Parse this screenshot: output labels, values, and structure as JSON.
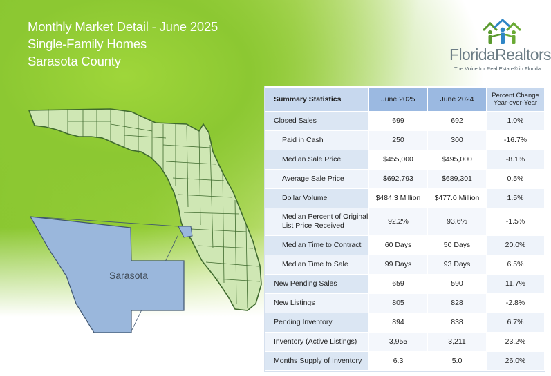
{
  "header": {
    "line1": "Monthly Market Detail - June 2025",
    "line2": "Single-Family Homes",
    "line3": "Sarasota County"
  },
  "logo": {
    "name": "FloridaRealtors",
    "registered": "®",
    "tagline": "The Voice for Real Estate® in Florida"
  },
  "map": {
    "county_label": "Sarasota",
    "state_fill": "#cfe7b4",
    "state_stroke": "#3f6a2e",
    "county_fill": "#9ab7dc",
    "county_stroke": "#3f5570"
  },
  "table": {
    "headers": {
      "label": "Summary Statistics",
      "current": "June 2025",
      "prior": "June 2024",
      "change_line1": "Percent Change",
      "change_line2": "Year-over-Year"
    },
    "rows": [
      {
        "label": "Closed Sales",
        "current": "699",
        "prior": "692",
        "change": "1.0%"
      },
      {
        "label": "Paid in Cash",
        "current": "250",
        "prior": "300",
        "change": "-16.7%"
      },
      {
        "label": "Median Sale Price",
        "current": "$455,000",
        "prior": "$495,000",
        "change": "-8.1%"
      },
      {
        "label": "Average Sale Price",
        "current": "$692,793",
        "prior": "$689,301",
        "change": "0.5%"
      },
      {
        "label": "Dollar Volume",
        "current": "$484.3 Million",
        "prior": "$477.0 Million",
        "change": "1.5%"
      },
      {
        "label_line1": "Median Percent of Original",
        "label_line2": "List Price Received",
        "current": "92.2%",
        "prior": "93.6%",
        "change": "-1.5%"
      },
      {
        "label": "Median Time to Contract",
        "current": "60 Days",
        "prior": "50 Days",
        "change": "20.0%"
      },
      {
        "label": "Median Time to Sale",
        "current": "99 Days",
        "prior": "93 Days",
        "change": "6.5%"
      },
      {
        "label": "New Pending Sales",
        "current": "659",
        "prior": "590",
        "change": "11.7%"
      },
      {
        "label": "New Listings",
        "current": "805",
        "prior": "828",
        "change": "-2.8%"
      },
      {
        "label": "Pending Inventory",
        "current": "894",
        "prior": "838",
        "change": "6.7%"
      },
      {
        "label": "Inventory (Active Listings)",
        "current": "3,955",
        "prior": "3,211",
        "change": "23.2%"
      },
      {
        "label": "Months Supply of Inventory",
        "current": "6.3",
        "prior": "5.0",
        "change": "26.0%"
      }
    ]
  }
}
